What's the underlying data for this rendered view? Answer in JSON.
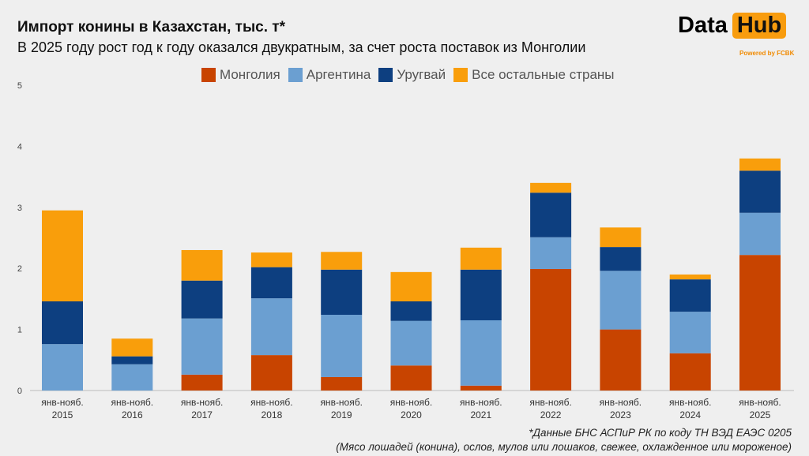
{
  "header": {
    "title": "Импорт конины в Казахстан, тыс. т*",
    "subtitle": "В 2025 году рост год к году оказался двукратным, за счет роста поставок из Монголии"
  },
  "logo": {
    "text1": "Data",
    "text2": "Hub",
    "powered": "Powered by FCBK"
  },
  "footnote": {
    "line1": "*Данные БНС АСПиР РК по коду ТН ВЭД ЕАЭС 0205",
    "line2": "(Мясо лошадей (конина), ослов, мулов или лошаков, свежее, охлажденное или мороженое)"
  },
  "chart_data": {
    "type": "bar",
    "stacked": true,
    "ylim": [
      0,
      5
    ],
    "yticks": [
      0,
      1,
      2,
      3,
      4,
      5
    ],
    "grid": false,
    "legend_position": "top",
    "categories": [
      [
        "янв-нояб.",
        "2015"
      ],
      [
        "янв-нояб.",
        "2016"
      ],
      [
        "янв-нояб.",
        "2017"
      ],
      [
        "янв-нояб.",
        "2018"
      ],
      [
        "янв-нояб.",
        "2019"
      ],
      [
        "янв-нояб.",
        "2020"
      ],
      [
        "янв-нояб.",
        "2021"
      ],
      [
        "янв-нояб.",
        "2022"
      ],
      [
        "янв-нояб.",
        "2023"
      ],
      [
        "янв-нояб.",
        "2024"
      ],
      [
        "янв-нояб.",
        "2025"
      ]
    ],
    "series": [
      {
        "name": "Монголия",
        "color": "#c84400",
        "values": [
          0,
          0,
          0.26,
          0.58,
          0.22,
          0.41,
          0.08,
          1.99,
          1.0,
          0.61,
          2.22
        ]
      },
      {
        "name": "Аргентина",
        "color": "#6b9fd1",
        "values": [
          0.76,
          0.43,
          0.92,
          0.93,
          1.02,
          0.73,
          1.07,
          0.52,
          0.96,
          0.68,
          0.69
        ]
      },
      {
        "name": "Уругвай",
        "color": "#0d3f80",
        "values": [
          0.7,
          0.13,
          0.62,
          0.51,
          0.74,
          0.32,
          0.83,
          0.73,
          0.39,
          0.53,
          0.69
        ]
      },
      {
        "name": "Все остальные страны",
        "color": "#f99e0b",
        "values": [
          1.49,
          0.29,
          0.5,
          0.24,
          0.29,
          0.48,
          0.36,
          0.16,
          0.32,
          0.08,
          0.2
        ]
      }
    ]
  }
}
